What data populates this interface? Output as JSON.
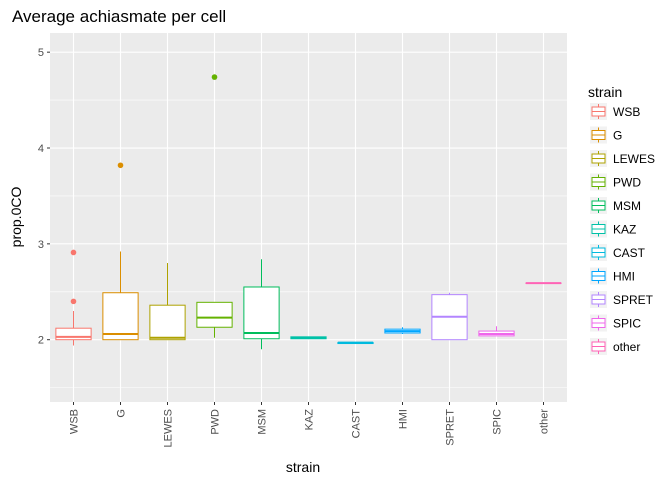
{
  "chart_data": {
    "type": "box",
    "title": "Average achiasmate per cell",
    "xlabel": "strain",
    "ylabel": "prop.0CO",
    "ylim": [
      1.35,
      5.2
    ],
    "y_ticks": [
      "2",
      "3",
      "4",
      "5"
    ],
    "y_tick_values": [
      2,
      3,
      4,
      5
    ],
    "categories": [
      "WSB",
      "G",
      "LEWES",
      "PWD",
      "MSM",
      "KAZ",
      "CAST",
      "HMI",
      "SPRET",
      "SPIC",
      "other"
    ],
    "legend_title": "strain",
    "legend_position": "right",
    "grid": true,
    "colors": [
      "#F8766D",
      "#DB8E00",
      "#AEA200",
      "#64B200",
      "#00BD5C",
      "#00C1A7",
      "#00BADE",
      "#00A6FF",
      "#B385FF",
      "#EF67EB",
      "#FF63B6"
    ],
    "boxes": [
      {
        "strain": "WSB",
        "min": 1.94,
        "q1": 2.0,
        "median": 2.03,
        "q3": 2.12,
        "max": 2.3,
        "outliers": [
          2.4,
          2.91
        ]
      },
      {
        "strain": "G",
        "min": 2.0,
        "q1": 2.0,
        "median": 2.06,
        "q3": 2.49,
        "max": 2.92,
        "outliers": [
          3.82
        ]
      },
      {
        "strain": "LEWES",
        "min": 2.0,
        "q1": 2.0,
        "median": 2.02,
        "q3": 2.36,
        "max": 2.8,
        "outliers": []
      },
      {
        "strain": "PWD",
        "min": 2.02,
        "q1": 2.13,
        "median": 2.23,
        "q3": 2.39,
        "max": 2.39,
        "outliers": [
          4.74
        ]
      },
      {
        "strain": "MSM",
        "min": 1.9,
        "q1": 2.01,
        "median": 2.07,
        "q3": 2.55,
        "max": 2.84,
        "outliers": []
      },
      {
        "strain": "KAZ",
        "min": 2.01,
        "q1": 2.01,
        "median": 2.02,
        "q3": 2.03,
        "max": 2.03,
        "outliers": []
      },
      {
        "strain": "CAST",
        "min": 1.96,
        "q1": 1.96,
        "median": 1.97,
        "q3": 1.97,
        "max": 1.97,
        "outliers": []
      },
      {
        "strain": "HMI",
        "min": 2.06,
        "q1": 2.07,
        "median": 2.09,
        "q3": 2.11,
        "max": 2.13,
        "outliers": []
      },
      {
        "strain": "SPRET",
        "min": 2.0,
        "q1": 2.0,
        "median": 2.24,
        "q3": 2.47,
        "max": 2.49,
        "outliers": []
      },
      {
        "strain": "SPIC",
        "min": 2.04,
        "q1": 2.04,
        "median": 2.06,
        "q3": 2.09,
        "max": 2.14,
        "outliers": []
      },
      {
        "strain": "other",
        "min": 2.59,
        "q1": 2.59,
        "median": 2.59,
        "q3": 2.59,
        "max": 2.59,
        "outliers": []
      }
    ]
  }
}
